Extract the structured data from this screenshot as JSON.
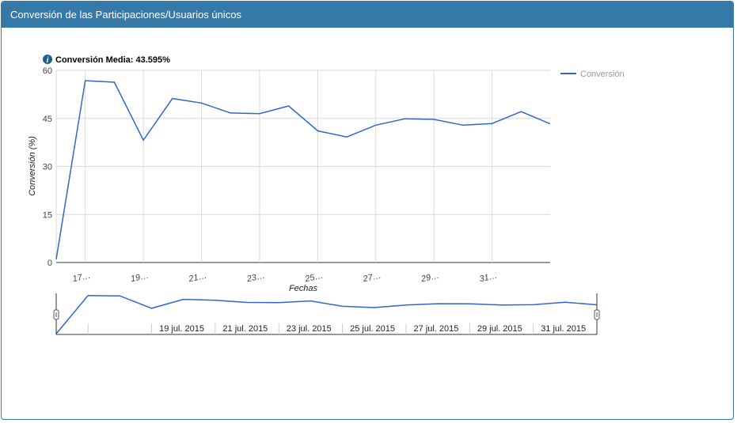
{
  "panel": {
    "title": "Conversión de las Participaciones/Usuarios únicos"
  },
  "summary": {
    "label": "Conversión Media: 43.595%",
    "icon": "info-icon"
  },
  "colors": {
    "header_bg": "#3579a8",
    "series": "#3366cc",
    "grid": "#d9d9d9",
    "info_icon": "#1f5f8f"
  },
  "chart_data": {
    "type": "line",
    "ylabel": "Conversión (%)",
    "xlabel": "Fechas",
    "ylim": [
      0,
      60
    ],
    "yticks": [
      0,
      15,
      30,
      45,
      60
    ],
    "x_tick_labels": [
      "17…",
      "19…",
      "21…",
      "23…",
      "25…",
      "27…",
      "29…",
      "31…"
    ],
    "legend": {
      "position": "right",
      "entries": [
        "Conversión"
      ]
    },
    "grid": true,
    "series": [
      {
        "name": "Conversión",
        "x": [
          "2015-07-16",
          "2015-07-17",
          "2015-07-18",
          "2015-07-19",
          "2015-07-20",
          "2015-07-21",
          "2015-07-22",
          "2015-07-23",
          "2015-07-24",
          "2015-07-25",
          "2015-07-26",
          "2015-07-27",
          "2015-07-28",
          "2015-07-29",
          "2015-07-30",
          "2015-07-31",
          "2015-08-01",
          "2015-08-02"
        ],
        "values": [
          1,
          56.8,
          56.3,
          38.2,
          51.2,
          49.8,
          46.7,
          46.5,
          48.9,
          41.1,
          39.2,
          42.9,
          44.9,
          44.7,
          42.9,
          43.4,
          47.1,
          43.3
        ]
      }
    ],
    "range_selector": {
      "tick_labels": [
        "19 jul. 2015",
        "21 jul. 2015",
        "23 jul. 2015",
        "25 jul. 2015",
        "27 jul. 2015",
        "29 jul. 2015",
        "31 jul. 2015"
      ]
    }
  }
}
